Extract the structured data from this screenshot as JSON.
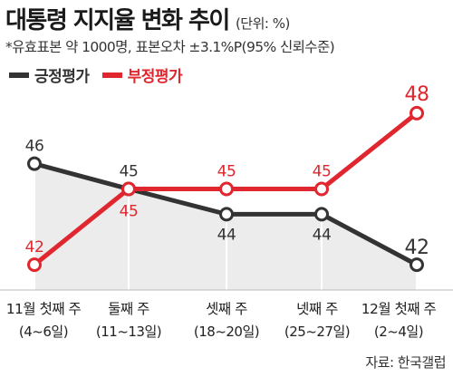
{
  "header": {
    "title": "대통령 지지율 변화 추이",
    "unit": "(단위: %)",
    "note": "*유효표본 약 1000명, 표본오차 ±3.1%P(95% 신뢰수준)"
  },
  "source": "자료: 한국갤럽",
  "colors": {
    "positive": "#333333",
    "negative": "#e0272f",
    "area": "#ececec"
  },
  "chart_data": {
    "type": "line",
    "categories": [
      "11월 첫째 주",
      "둘째 주",
      "셋째 주",
      "넷째 주",
      "12월 첫째 주"
    ],
    "sub_labels": [
      "(4~6일)",
      "(11~13일)",
      "(18~20일)",
      "(25~27일)",
      "(2~4일)"
    ],
    "series": [
      {
        "name": "긍정평가",
        "values": [
          46,
          45,
          44,
          44,
          42
        ]
      },
      {
        "name": "부정평가",
        "values": [
          42,
          45,
          45,
          45,
          48
        ]
      }
    ],
    "ylim": [
      41,
      49
    ],
    "grid": false,
    "legend_position": "top-left"
  }
}
